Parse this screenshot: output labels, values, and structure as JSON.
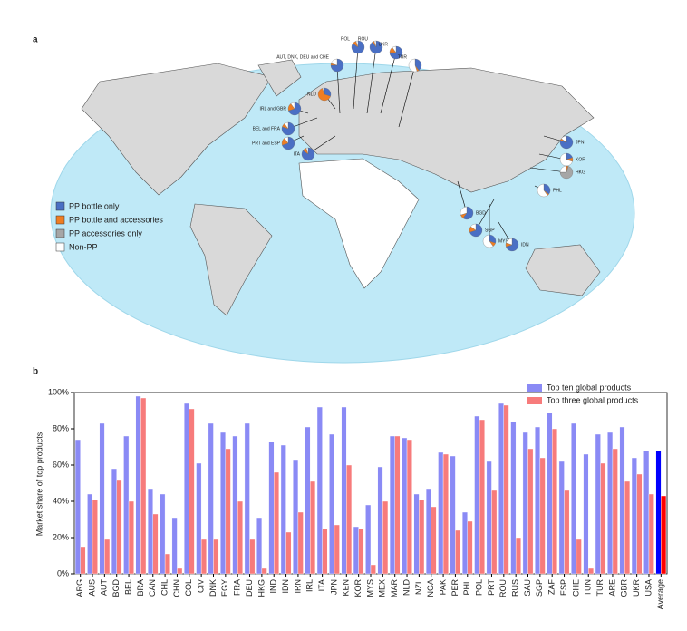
{
  "panel_a": {
    "label": "a",
    "legend": [
      {
        "label": "PP bottle only",
        "color": "#4a6fc4"
      },
      {
        "label": "PP bottle and accessories",
        "color": "#ef7d22"
      },
      {
        "label": "PP accessories only",
        "color": "#a6a6a6"
      },
      {
        "label": "Non-PP",
        "color": "#ffffff"
      }
    ],
    "pies": [
      {
        "label": "POL",
        "shares": [
          85,
          10,
          0,
          5
        ]
      },
      {
        "label": "ROU",
        "shares": [
          90,
          5,
          0,
          5
        ]
      },
      {
        "label": "UKR",
        "shares": [
          75,
          15,
          0,
          10
        ]
      },
      {
        "label": "TUR",
        "shares": [
          40,
          5,
          0,
          55
        ]
      },
      {
        "label": "AUT, DNK, DEU and CHE",
        "shares": [
          75,
          5,
          0,
          20
        ]
      },
      {
        "label": "NLD",
        "shares": [
          30,
          65,
          0,
          5
        ]
      },
      {
        "label": "IRL and GBR",
        "shares": [
          70,
          20,
          0,
          10
        ]
      },
      {
        "label": "BEL and FRA",
        "shares": [
          80,
          10,
          0,
          10
        ]
      },
      {
        "label": "PRT and ESP",
        "shares": [
          70,
          20,
          0,
          10
        ]
      },
      {
        "label": "ITA",
        "shares": [
          85,
          10,
          0,
          5
        ]
      },
      {
        "label": "JPN",
        "shares": [
          80,
          5,
          0,
          15
        ]
      },
      {
        "label": "KOR",
        "shares": [
          20,
          10,
          0,
          70
        ]
      },
      {
        "label": "HKG",
        "shares": [
          0,
          5,
          70,
          25
        ]
      },
      {
        "label": "PHL",
        "shares": [
          35,
          5,
          0,
          60
        ]
      },
      {
        "label": "BGD",
        "shares": [
          60,
          10,
          0,
          30
        ]
      },
      {
        "label": "SGP",
        "shares": [
          70,
          15,
          0,
          15
        ]
      },
      {
        "label": "MYS",
        "shares": [
          30,
          10,
          0,
          60
        ]
      },
      {
        "label": "IDN",
        "shares": [
          70,
          10,
          0,
          20
        ]
      }
    ]
  },
  "chart_data": {
    "type": "bar",
    "panel_label": "b",
    "ylabel": "Market share of top products",
    "categories": [
      "ARG",
      "AUS",
      "AUT",
      "BGD",
      "BEL",
      "BRA",
      "CAN",
      "CHL",
      "CHN",
      "COL",
      "CIV",
      "DNK",
      "EGY",
      "FRA",
      "DEU",
      "HKG",
      "IND",
      "IDN",
      "IRN",
      "IRL",
      "ITA",
      "JPN",
      "KEN",
      "KOR",
      "MYS",
      "MEX",
      "MAR",
      "NLD",
      "NZL",
      "NGA",
      "PAK",
      "PER",
      "PHL",
      "POL",
      "PRT",
      "ROU",
      "RUS",
      "SAU",
      "SGP",
      "ZAF",
      "ESP",
      "CHE",
      "TUN",
      "TUR",
      "ARE",
      "GBR",
      "UKR",
      "USA",
      "Average"
    ],
    "series": [
      {
        "name": "Top ten global products",
        "color": "#8a8af5",
        "highlight_color": "#0000ff",
        "values": [
          74,
          44,
          83,
          58,
          76,
          98,
          47,
          44,
          31,
          94,
          61,
          83,
          78,
          76,
          83,
          31,
          73,
          71,
          63,
          81,
          92,
          77,
          92,
          26,
          38,
          59,
          76,
          75,
          44,
          47,
          67,
          65,
          34,
          87,
          62,
          94,
          84,
          78,
          81,
          89,
          62,
          83,
          66,
          77,
          78,
          81,
          64,
          68,
          68
        ]
      },
      {
        "name": "Top three global products",
        "color": "#f77b7b",
        "highlight_color": "#ff0000",
        "values": [
          15,
          41,
          19,
          52,
          40,
          97,
          33,
          11,
          3,
          91,
          19,
          19,
          69,
          40,
          19,
          3,
          56,
          23,
          34,
          51,
          25,
          27,
          60,
          25,
          5,
          40,
          76,
          74,
          41,
          37,
          66,
          24,
          29,
          85,
          46,
          93,
          20,
          69,
          64,
          80,
          46,
          19,
          3,
          61,
          69,
          51,
          55,
          44,
          43
        ]
      }
    ],
    "ylim": [
      0,
      100
    ],
    "yticks": [
      {
        "value": 0,
        "label": "0%"
      },
      {
        "value": 20,
        "label": "20%"
      },
      {
        "value": 40,
        "label": "40%"
      },
      {
        "value": 60,
        "label": "60%"
      },
      {
        "value": 80,
        "label": "80%"
      },
      {
        "value": 100,
        "label": "100%"
      }
    ],
    "legend_position": "upper right"
  }
}
